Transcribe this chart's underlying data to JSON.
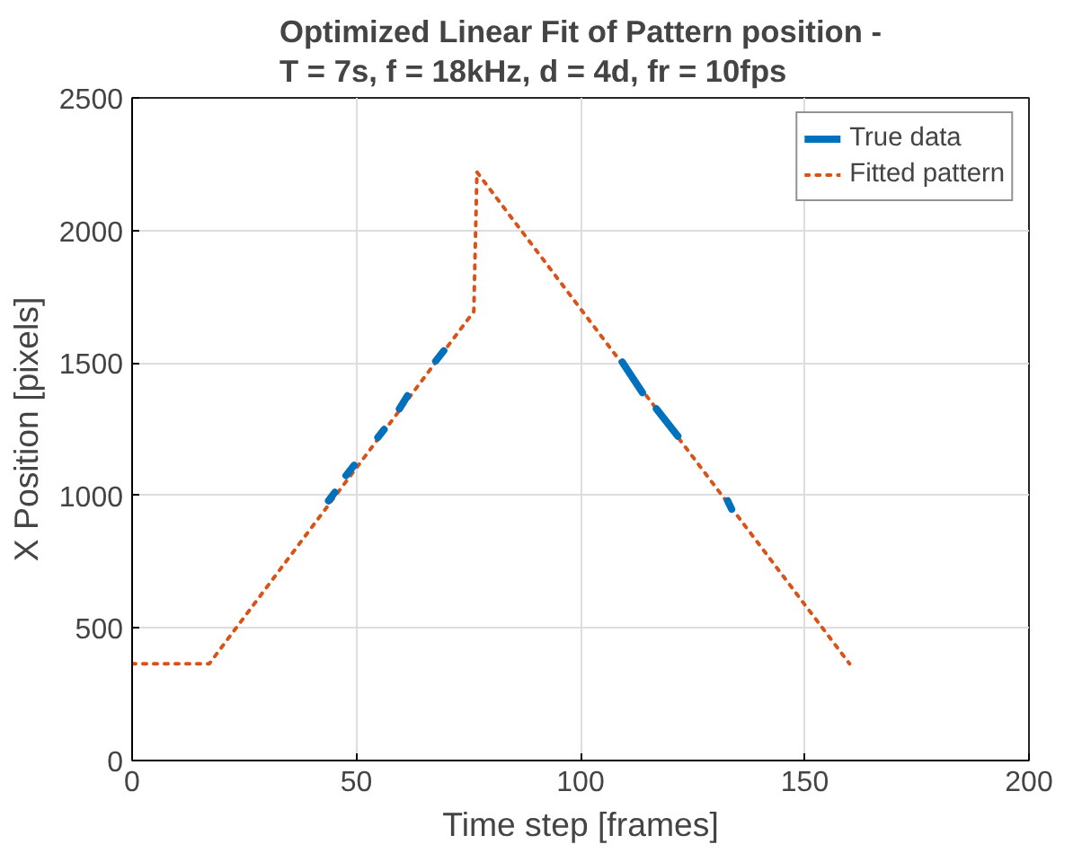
{
  "chart_data": {
    "type": "line",
    "title": "Optimized Linear Fit of Pattern position -\nT = 7s, f = 18kHz, d = 4d, fr = 10fps",
    "xlabel": "Time step [frames]",
    "ylabel": "X Position [pixels]",
    "xlim": [
      0,
      200
    ],
    "ylim": [
      0,
      2500
    ],
    "xticks": [
      0,
      50,
      100,
      150,
      200
    ],
    "yticks": [
      0,
      500,
      1000,
      1500,
      2000,
      2500
    ],
    "grid": true,
    "legend": "top right",
    "series": [
      {
        "name": "True data",
        "color": "#0072bd",
        "line_style": "solid",
        "x": [
          43.8,
          45.2,
          null,
          47.7,
          49.5,
          null,
          54.8,
          56.2,
          null,
          59.6,
          61.4,
          null,
          67.7,
          69.5,
          null,
          109.3,
          113.8,
          null,
          116.9,
          121.7,
          null,
          132.8,
          133.7
        ],
        "values": [
          980,
          1012,
          null,
          1075,
          1114,
          null,
          1219,
          1249,
          null,
          1327,
          1376,
          null,
          1507,
          1546,
          null,
          1503,
          1388,
          null,
          1327,
          1224,
          null,
          980,
          948
        ]
      },
      {
        "name": "Fitted pattern",
        "color": "#d95319",
        "line_style": "dotted",
        "x": [
          0,
          17.2,
          76.2,
          76.9,
          160.0
        ],
        "values": [
          365,
          365,
          1694,
          2220,
          365
        ]
      }
    ]
  }
}
